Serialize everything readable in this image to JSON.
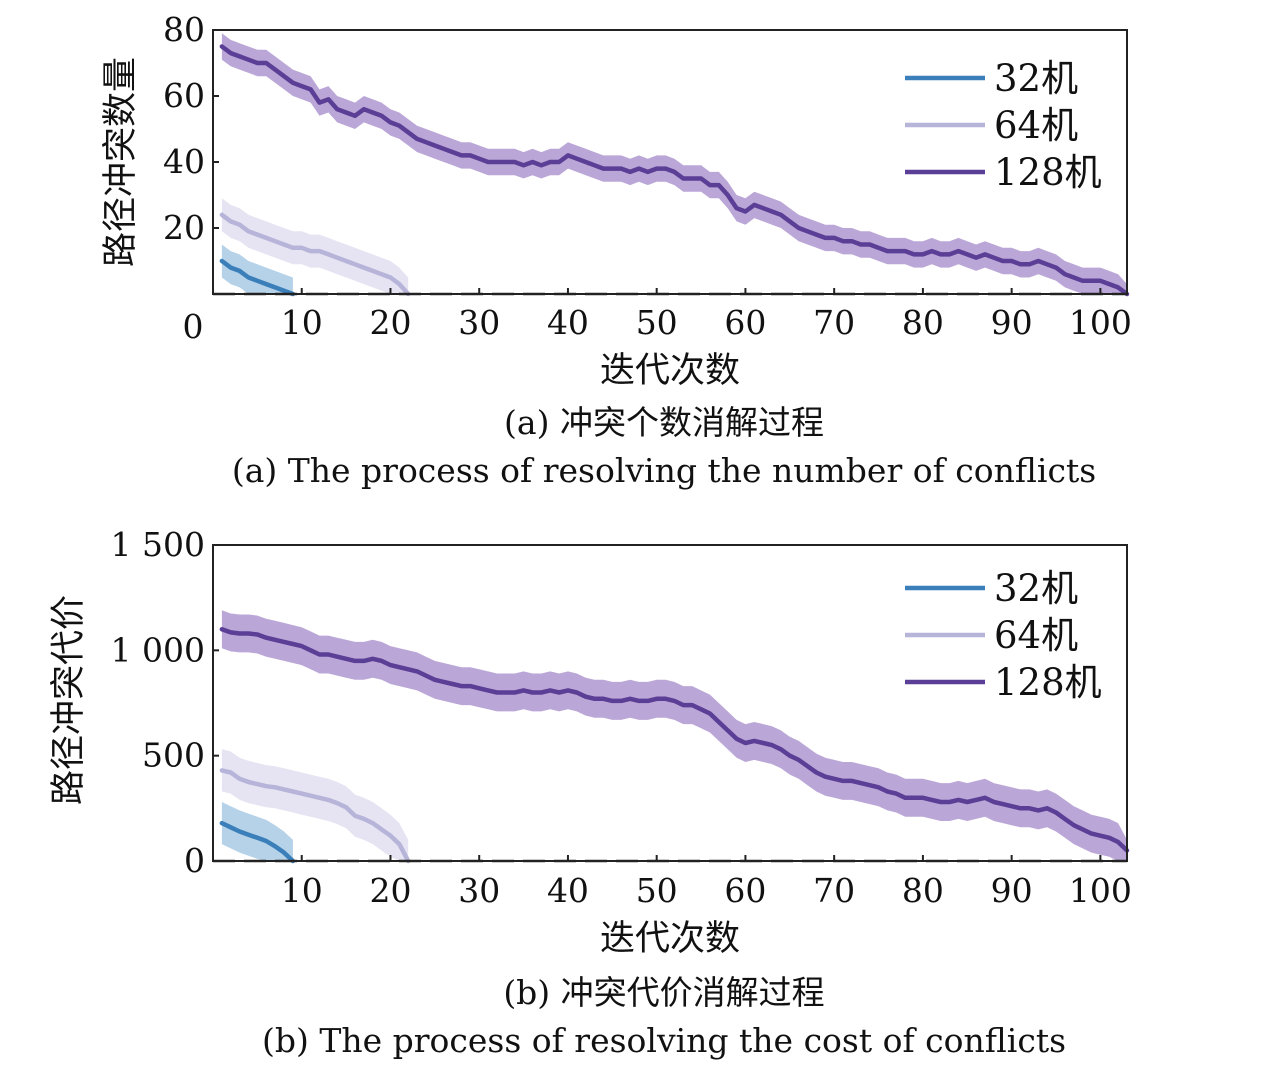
{
  "chart_data": [
    {
      "type": "line",
      "xlabel": "迭代次数",
      "ylabel": "路径冲突数量",
      "caption_cn": "(a) 冲突个数消解过程",
      "caption_en": "(a) The process of resolving the number of conflicts",
      "xlim": [
        0,
        103
      ],
      "ylim": [
        0,
        80
      ],
      "xticks": [
        10,
        20,
        30,
        40,
        50,
        60,
        70,
        80,
        90,
        100
      ],
      "yticks": [
        20,
        40,
        60,
        80
      ],
      "y_origin_label": "0",
      "legend_position": "top-right",
      "baseline": 0,
      "series": [
        {
          "name": "32机",
          "color": "#3a7fb9",
          "band_color": "#9ec3e2",
          "x": [
            1,
            2,
            3,
            4,
            5,
            6,
            7,
            8,
            9
          ],
          "y": [
            10,
            8,
            7,
            5,
            4,
            3,
            2,
            1,
            0
          ],
          "band": [
            5,
            5,
            5,
            5,
            5,
            5,
            5,
            5,
            5
          ]
        },
        {
          "name": "64机",
          "color": "#b7b4d9",
          "band_color": "#dddbee",
          "x": [
            1,
            2,
            3,
            4,
            5,
            6,
            7,
            8,
            9,
            10,
            11,
            12,
            13,
            14,
            15,
            16,
            17,
            18,
            19,
            20,
            21,
            22
          ],
          "y": [
            24,
            22,
            21,
            19,
            18,
            17,
            16,
            15,
            14,
            14,
            13,
            13,
            12,
            11,
            10,
            9,
            8,
            7,
            6,
            5,
            3,
            0
          ],
          "band": [
            5,
            5,
            5,
            5,
            5,
            5,
            5,
            5,
            5,
            5,
            5,
            5,
            5,
            5,
            5,
            5,
            5,
            5,
            5,
            5,
            5,
            5
          ]
        },
        {
          "name": "128机",
          "color": "#5b3e95",
          "band_color": "#a48ac9",
          "x": [
            1,
            2,
            3,
            4,
            5,
            6,
            7,
            8,
            9,
            10,
            11,
            12,
            13,
            14,
            15,
            16,
            17,
            18,
            19,
            20,
            21,
            22,
            23,
            24,
            25,
            26,
            27,
            28,
            29,
            30,
            31,
            32,
            33,
            34,
            35,
            36,
            37,
            38,
            39,
            40,
            41,
            42,
            43,
            44,
            45,
            46,
            47,
            48,
            49,
            50,
            51,
            52,
            53,
            54,
            55,
            56,
            57,
            58,
            59,
            60,
            61,
            62,
            63,
            64,
            65,
            66,
            67,
            68,
            69,
            70,
            71,
            72,
            73,
            74,
            75,
            76,
            77,
            78,
            79,
            80,
            81,
            82,
            83,
            84,
            85,
            86,
            87,
            88,
            89,
            90,
            91,
            92,
            93,
            94,
            95,
            96,
            97,
            98,
            99,
            100,
            101,
            102,
            103
          ],
          "y": [
            75,
            73,
            72,
            71,
            70,
            70,
            68,
            66,
            64,
            63,
            62,
            58,
            59,
            56,
            55,
            54,
            56,
            55,
            54,
            52,
            51,
            49,
            47,
            46,
            45,
            44,
            43,
            42,
            42,
            41,
            40,
            40,
            40,
            40,
            39,
            40,
            39,
            40,
            40,
            42,
            41,
            40,
            39,
            38,
            38,
            38,
            37,
            38,
            37,
            38,
            38,
            37,
            35,
            35,
            35,
            33,
            33,
            30,
            26,
            25,
            27,
            26,
            25,
            24,
            22,
            20,
            19,
            18,
            17,
            17,
            16,
            16,
            15,
            15,
            14,
            13,
            13,
            13,
            12,
            12,
            13,
            12,
            12,
            13,
            12,
            11,
            12,
            11,
            10,
            10,
            9,
            9,
            10,
            9,
            8,
            6,
            5,
            4,
            4,
            4,
            3,
            2,
            0
          ],
          "band": [
            4,
            4,
            4,
            4,
            4,
            4,
            4,
            4,
            4,
            4,
            4,
            4,
            4,
            4,
            4,
            4,
            4,
            4,
            4,
            4,
            4,
            4,
            4,
            4,
            4,
            4,
            4,
            4,
            4,
            4,
            4,
            4,
            4,
            4,
            4,
            4,
            4,
            4,
            4,
            4,
            4,
            4,
            4,
            4,
            4,
            4,
            4,
            4,
            4,
            4,
            4,
            4,
            4,
            4,
            4,
            4,
            4,
            4,
            4,
            4,
            4,
            4,
            4,
            4,
            4,
            4,
            4,
            4,
            4,
            4,
            4,
            4,
            4,
            4,
            4,
            4,
            4,
            4,
            4,
            4,
            4,
            4,
            4,
            4,
            4,
            4,
            4,
            4,
            4,
            4,
            4,
            4,
            4,
            4,
            4,
            4,
            4,
            4,
            4,
            4,
            4,
            4,
            3
          ]
        }
      ]
    },
    {
      "type": "line",
      "xlabel": "迭代次数",
      "ylabel": "路径冲突代价",
      "caption_cn": "(b) 冲突代价消解过程",
      "caption_en": "(b) The process of resolving the cost of conflicts",
      "xlim": [
        0,
        103
      ],
      "ylim": [
        0,
        1500
      ],
      "xticks": [
        10,
        20,
        30,
        40,
        50,
        60,
        70,
        80,
        90,
        100
      ],
      "yticks": [
        0,
        500,
        1000,
        1500
      ],
      "ytick_labels": [
        "0",
        "500",
        "1 000",
        "1 500"
      ],
      "legend_position": "top-right",
      "baseline": 0,
      "series": [
        {
          "name": "32机",
          "color": "#3a7fb9",
          "band_color": "#9ec3e2",
          "x": [
            1,
            2,
            3,
            4,
            5,
            6,
            7,
            8,
            9
          ],
          "y": [
            180,
            160,
            140,
            125,
            110,
            95,
            70,
            40,
            0
          ],
          "band": [
            100,
            100,
            100,
            100,
            100,
            100,
            100,
            100,
            100
          ]
        },
        {
          "name": "64机",
          "color": "#b7b4d9",
          "band_color": "#dddbee",
          "x": [
            1,
            2,
            3,
            4,
            5,
            6,
            7,
            8,
            9,
            10,
            11,
            12,
            13,
            14,
            15,
            16,
            17,
            18,
            19,
            20,
            21,
            22
          ],
          "y": [
            430,
            420,
            390,
            375,
            365,
            355,
            350,
            340,
            330,
            320,
            310,
            300,
            290,
            275,
            255,
            215,
            200,
            180,
            150,
            120,
            80,
            0
          ],
          "band": [
            100,
            100,
            100,
            100,
            100,
            100,
            100,
            100,
            100,
            100,
            100,
            100,
            100,
            100,
            100,
            100,
            100,
            100,
            100,
            100,
            100,
            100
          ]
        },
        {
          "name": "128机",
          "color": "#5b3e95",
          "band_color": "#a48ac9",
          "x": [
            1,
            2,
            3,
            4,
            5,
            6,
            7,
            8,
            9,
            10,
            11,
            12,
            13,
            14,
            15,
            16,
            17,
            18,
            19,
            20,
            21,
            22,
            23,
            24,
            25,
            26,
            27,
            28,
            29,
            30,
            31,
            32,
            33,
            34,
            35,
            36,
            37,
            38,
            39,
            40,
            41,
            42,
            43,
            44,
            45,
            46,
            47,
            48,
            49,
            50,
            51,
            52,
            53,
            54,
            55,
            56,
            57,
            58,
            59,
            60,
            61,
            62,
            63,
            64,
            65,
            66,
            67,
            68,
            69,
            70,
            71,
            72,
            73,
            74,
            75,
            76,
            77,
            78,
            79,
            80,
            81,
            82,
            83,
            84,
            85,
            86,
            87,
            88,
            89,
            90,
            91,
            92,
            93,
            94,
            95,
            96,
            97,
            98,
            99,
            100,
            101,
            102,
            103
          ],
          "y": [
            1100,
            1085,
            1080,
            1080,
            1075,
            1060,
            1050,
            1040,
            1030,
            1020,
            1000,
            980,
            980,
            970,
            960,
            950,
            950,
            960,
            950,
            930,
            920,
            910,
            900,
            880,
            860,
            850,
            840,
            830,
            830,
            820,
            810,
            800,
            800,
            800,
            810,
            800,
            800,
            810,
            800,
            810,
            800,
            780,
            770,
            770,
            760,
            760,
            770,
            760,
            760,
            770,
            770,
            760,
            740,
            740,
            720,
            700,
            660,
            620,
            580,
            560,
            570,
            560,
            550,
            530,
            500,
            480,
            450,
            420,
            400,
            390,
            380,
            380,
            370,
            360,
            350,
            330,
            320,
            300,
            300,
            300,
            290,
            280,
            280,
            290,
            280,
            290,
            300,
            280,
            270,
            260,
            250,
            250,
            240,
            250,
            230,
            200,
            170,
            150,
            130,
            120,
            110,
            90,
            50
          ],
          "band": [
            90,
            90,
            90,
            90,
            90,
            90,
            90,
            90,
            90,
            90,
            90,
            90,
            90,
            90,
            90,
            90,
            90,
            90,
            90,
            90,
            90,
            90,
            90,
            90,
            90,
            90,
            90,
            90,
            90,
            90,
            90,
            90,
            90,
            90,
            90,
            90,
            90,
            90,
            90,
            90,
            90,
            90,
            90,
            90,
            90,
            90,
            90,
            90,
            90,
            90,
            90,
            90,
            90,
            90,
            90,
            90,
            90,
            90,
            90,
            90,
            90,
            90,
            90,
            90,
            90,
            90,
            90,
            90,
            90,
            90,
            90,
            90,
            90,
            90,
            90,
            90,
            90,
            90,
            90,
            90,
            90,
            90,
            90,
            90,
            90,
            90,
            90,
            90,
            90,
            90,
            90,
            90,
            90,
            90,
            90,
            90,
            90,
            90,
            90,
            90,
            90,
            90,
            50
          ]
        }
      ]
    }
  ]
}
